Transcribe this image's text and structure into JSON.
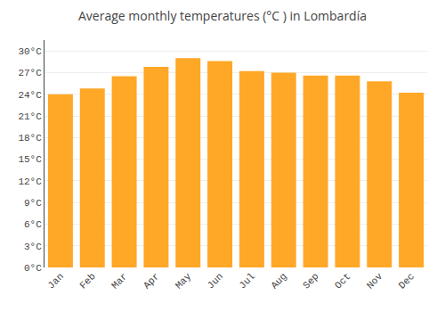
{
  "chart_data": {
    "type": "bar",
    "title": "Average monthly temperatures (°C ) in Lombardía",
    "categories": [
      "Jan",
      "Feb",
      "Mar",
      "Apr",
      "May",
      "Jun",
      "Jul",
      "Aug",
      "Sep",
      "Oct",
      "Nov",
      "Dec"
    ],
    "values": [
      24.0,
      24.8,
      26.5,
      27.8,
      29.0,
      28.6,
      27.2,
      27.0,
      26.6,
      26.6,
      25.8,
      24.2
    ],
    "color": "#FFA726",
    "ylim": [
      0,
      31.5
    ],
    "yticks": [
      {
        "value": 0,
        "label": "0°C"
      },
      {
        "value": 3,
        "label": "3°C"
      },
      {
        "value": 6,
        "label": "6°C"
      },
      {
        "value": 9,
        "label": "9°C"
      },
      {
        "value": 12,
        "label": "12°C"
      },
      {
        "value": 15,
        "label": "15°C"
      },
      {
        "value": 18,
        "label": "18°C"
      },
      {
        "value": 21,
        "label": "21°C"
      },
      {
        "value": 24,
        "label": "24°C"
      },
      {
        "value": 27,
        "label": "27°C"
      },
      {
        "value": 30,
        "label": "30°C"
      }
    ],
    "grid": true
  }
}
